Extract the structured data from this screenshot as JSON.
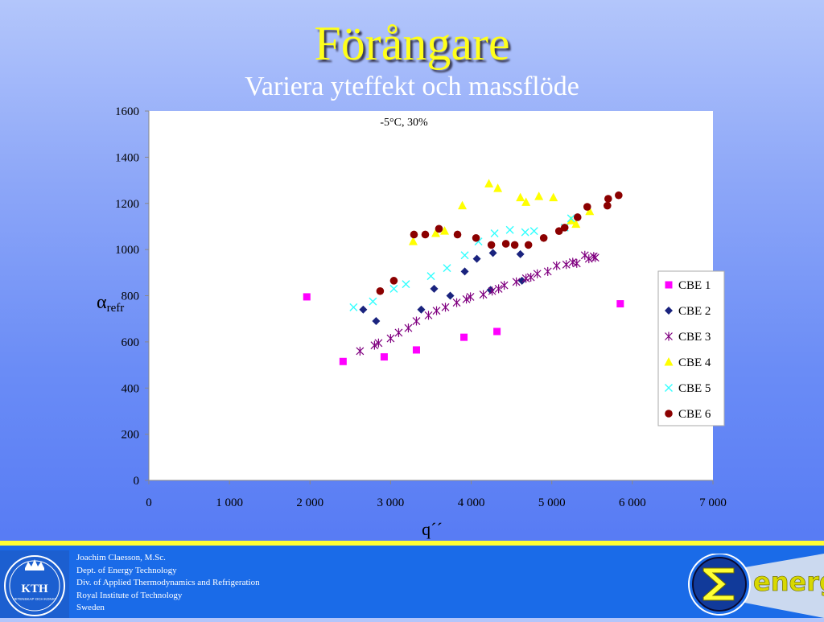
{
  "slide": {
    "title": "Förångare",
    "subtitle": "Variera yteffekt och massflöde"
  },
  "chart_data": {
    "type": "scatter",
    "title": "-5°C, 30%",
    "xlabel": "q´´",
    "ylabel_main": "α",
    "ylabel_sub": "refr",
    "xlim": [
      0,
      7000
    ],
    "ylim": [
      0,
      1600
    ],
    "x_ticks": [
      0,
      1000,
      2000,
      3000,
      4000,
      5000,
      6000,
      7000
    ],
    "x_tick_labels": [
      "0",
      "1 000",
      "2 000",
      "3 000",
      "4 000",
      "5 000",
      "6 000",
      "7 000"
    ],
    "y_ticks": [
      0,
      200,
      400,
      600,
      800,
      1000,
      1200,
      1400,
      1600
    ],
    "y_tick_labels": [
      "0",
      "200",
      "400",
      "600",
      "800",
      "1000",
      "1200",
      "1400",
      "1600"
    ],
    "grid": false,
    "legend_position": "right",
    "series": [
      {
        "name": "CBE 1",
        "marker": "square",
        "color": "#ff00ff",
        "points": [
          [
            1960,
            795
          ],
          [
            2410,
            515
          ],
          [
            2920,
            535
          ],
          [
            3320,
            565
          ],
          [
            3910,
            620
          ],
          [
            4320,
            645
          ],
          [
            5850,
            765
          ]
        ]
      },
      {
        "name": "CBE 2",
        "marker": "diamond",
        "color": "#1a237e",
        "points": [
          [
            2660,
            740
          ],
          [
            2820,
            690
          ],
          [
            3380,
            740
          ],
          [
            3540,
            830
          ],
          [
            3740,
            800
          ],
          [
            3920,
            905
          ],
          [
            4070,
            960
          ],
          [
            4240,
            825
          ],
          [
            4270,
            985
          ],
          [
            4610,
            980
          ],
          [
            4630,
            865
          ]
        ]
      },
      {
        "name": "CBE 3",
        "marker": "star",
        "color": "#800080",
        "points": [
          [
            2620,
            560
          ],
          [
            2800,
            585
          ],
          [
            2850,
            595
          ],
          [
            3000,
            615
          ],
          [
            3100,
            640
          ],
          [
            3220,
            660
          ],
          [
            3320,
            690
          ],
          [
            3470,
            715
          ],
          [
            3570,
            735
          ],
          [
            3680,
            750
          ],
          [
            3820,
            770
          ],
          [
            3940,
            785
          ],
          [
            3990,
            795
          ],
          [
            4150,
            805
          ],
          [
            4260,
            820
          ],
          [
            4340,
            830
          ],
          [
            4410,
            845
          ],
          [
            4560,
            860
          ],
          [
            4680,
            875
          ],
          [
            4740,
            880
          ],
          [
            4820,
            895
          ],
          [
            4950,
            905
          ],
          [
            5060,
            930
          ],
          [
            5180,
            935
          ],
          [
            5260,
            945
          ],
          [
            5310,
            940
          ],
          [
            5410,
            975
          ],
          [
            5460,
            960
          ],
          [
            5520,
            970
          ],
          [
            5540,
            965
          ]
        ]
      },
      {
        "name": "CBE 4",
        "marker": "triangle",
        "color": "#ffff00",
        "points": [
          [
            3280,
            1035
          ],
          [
            3560,
            1070
          ],
          [
            3670,
            1080
          ],
          [
            3890,
            1190
          ],
          [
            4220,
            1285
          ],
          [
            4330,
            1265
          ],
          [
            4610,
            1225
          ],
          [
            4680,
            1205
          ],
          [
            4840,
            1230
          ],
          [
            5020,
            1225
          ],
          [
            5240,
            1125
          ],
          [
            5300,
            1110
          ],
          [
            5470,
            1165
          ]
        ]
      },
      {
        "name": "CBE 5",
        "marker": "x",
        "color": "#33ffff",
        "points": [
          [
            2540,
            750
          ],
          [
            2780,
            775
          ],
          [
            3040,
            830
          ],
          [
            3190,
            850
          ],
          [
            3500,
            885
          ],
          [
            3700,
            920
          ],
          [
            3920,
            975
          ],
          [
            4090,
            1035
          ],
          [
            4290,
            1070
          ],
          [
            4480,
            1085
          ],
          [
            4670,
            1075
          ],
          [
            4780,
            1080
          ],
          [
            5160,
            1095
          ],
          [
            5240,
            1135
          ]
        ]
      },
      {
        "name": "CBE 6",
        "marker": "circle",
        "color": "#8b0000",
        "points": [
          [
            2870,
            820
          ],
          [
            3040,
            865
          ],
          [
            3290,
            1065
          ],
          [
            3430,
            1065
          ],
          [
            3600,
            1090
          ],
          [
            3830,
            1065
          ],
          [
            4060,
            1050
          ],
          [
            4250,
            1020
          ],
          [
            4430,
            1025
          ],
          [
            4540,
            1020
          ],
          [
            4710,
            1020
          ],
          [
            4900,
            1050
          ],
          [
            5090,
            1080
          ],
          [
            5160,
            1095
          ],
          [
            5320,
            1140
          ],
          [
            5440,
            1185
          ],
          [
            5690,
            1190
          ],
          [
            5700,
            1220
          ],
          [
            5830,
            1235
          ]
        ]
      }
    ]
  },
  "footer": {
    "kth_logo_text": "KTH",
    "kth_logo_subtext": "VETENSKAP OCH KONST",
    "affiliation": [
      "Joachim Claesson, M.Sc.",
      "Dept. of Energy Technology",
      "Div. of Applied Thermodynamics and Refrigeration",
      "Royal Institute of Technology",
      "Sweden"
    ],
    "energi_logo_text": "energi"
  },
  "colors": {
    "title": "#ffff1a",
    "footer_line": "#ffff33",
    "plot_background": "#ffffff"
  }
}
